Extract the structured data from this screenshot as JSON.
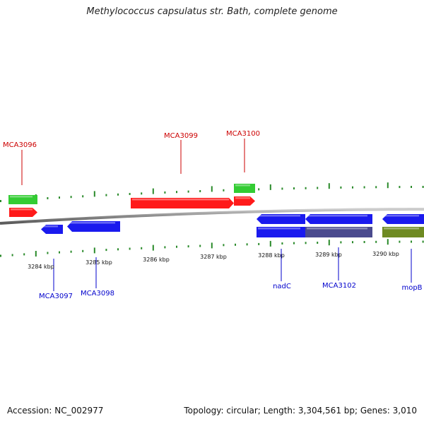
{
  "title": "Methylococcus capsulatus str. Bath, complete genome",
  "footer": {
    "accession": "Accession: NC_002977",
    "topology": "Topology: circular; Length: 3,304,561 bp; Genes: 3,010"
  },
  "colors": {
    "backbone": "#8a8a8a",
    "tick": "#2a8a2a",
    "forward_cds": "#ff1a1a",
    "forward_gene": "#33cc33",
    "reverse_cds": "#1a1aee",
    "reverse_gene": "#1a1aee",
    "reverse_misc": "#4a4a8e",
    "reverse_other": "#6e8a22",
    "label_forward": "#cc0000",
    "label_reverse": "#0000cc"
  },
  "scale_labels": [
    {
      "kbp": 3284,
      "text": "3284 kbp"
    },
    {
      "kbp": 3285,
      "text": "3285 kbp"
    },
    {
      "kbp": 3286,
      "text": "3286 kbp"
    },
    {
      "kbp": 3287,
      "text": "3287 kbp"
    },
    {
      "kbp": 3288,
      "text": "3288 kbp"
    },
    {
      "kbp": 3289,
      "text": "3289 kbp"
    },
    {
      "kbp": 3290,
      "text": "3290 kbp"
    }
  ],
  "gene_labels": [
    {
      "text": "MCA3096",
      "strand": "forward"
    },
    {
      "text": "MCA3099",
      "strand": "forward"
    },
    {
      "text": "MCA3100",
      "strand": "forward"
    },
    {
      "text": "MCA3097",
      "strand": "reverse"
    },
    {
      "text": "MCA3098",
      "strand": "reverse"
    },
    {
      "text": "nadC",
      "strand": "reverse"
    },
    {
      "text": "MCA3102",
      "strand": "reverse"
    },
    {
      "text": "mopB",
      "strand": "reverse"
    }
  ]
}
